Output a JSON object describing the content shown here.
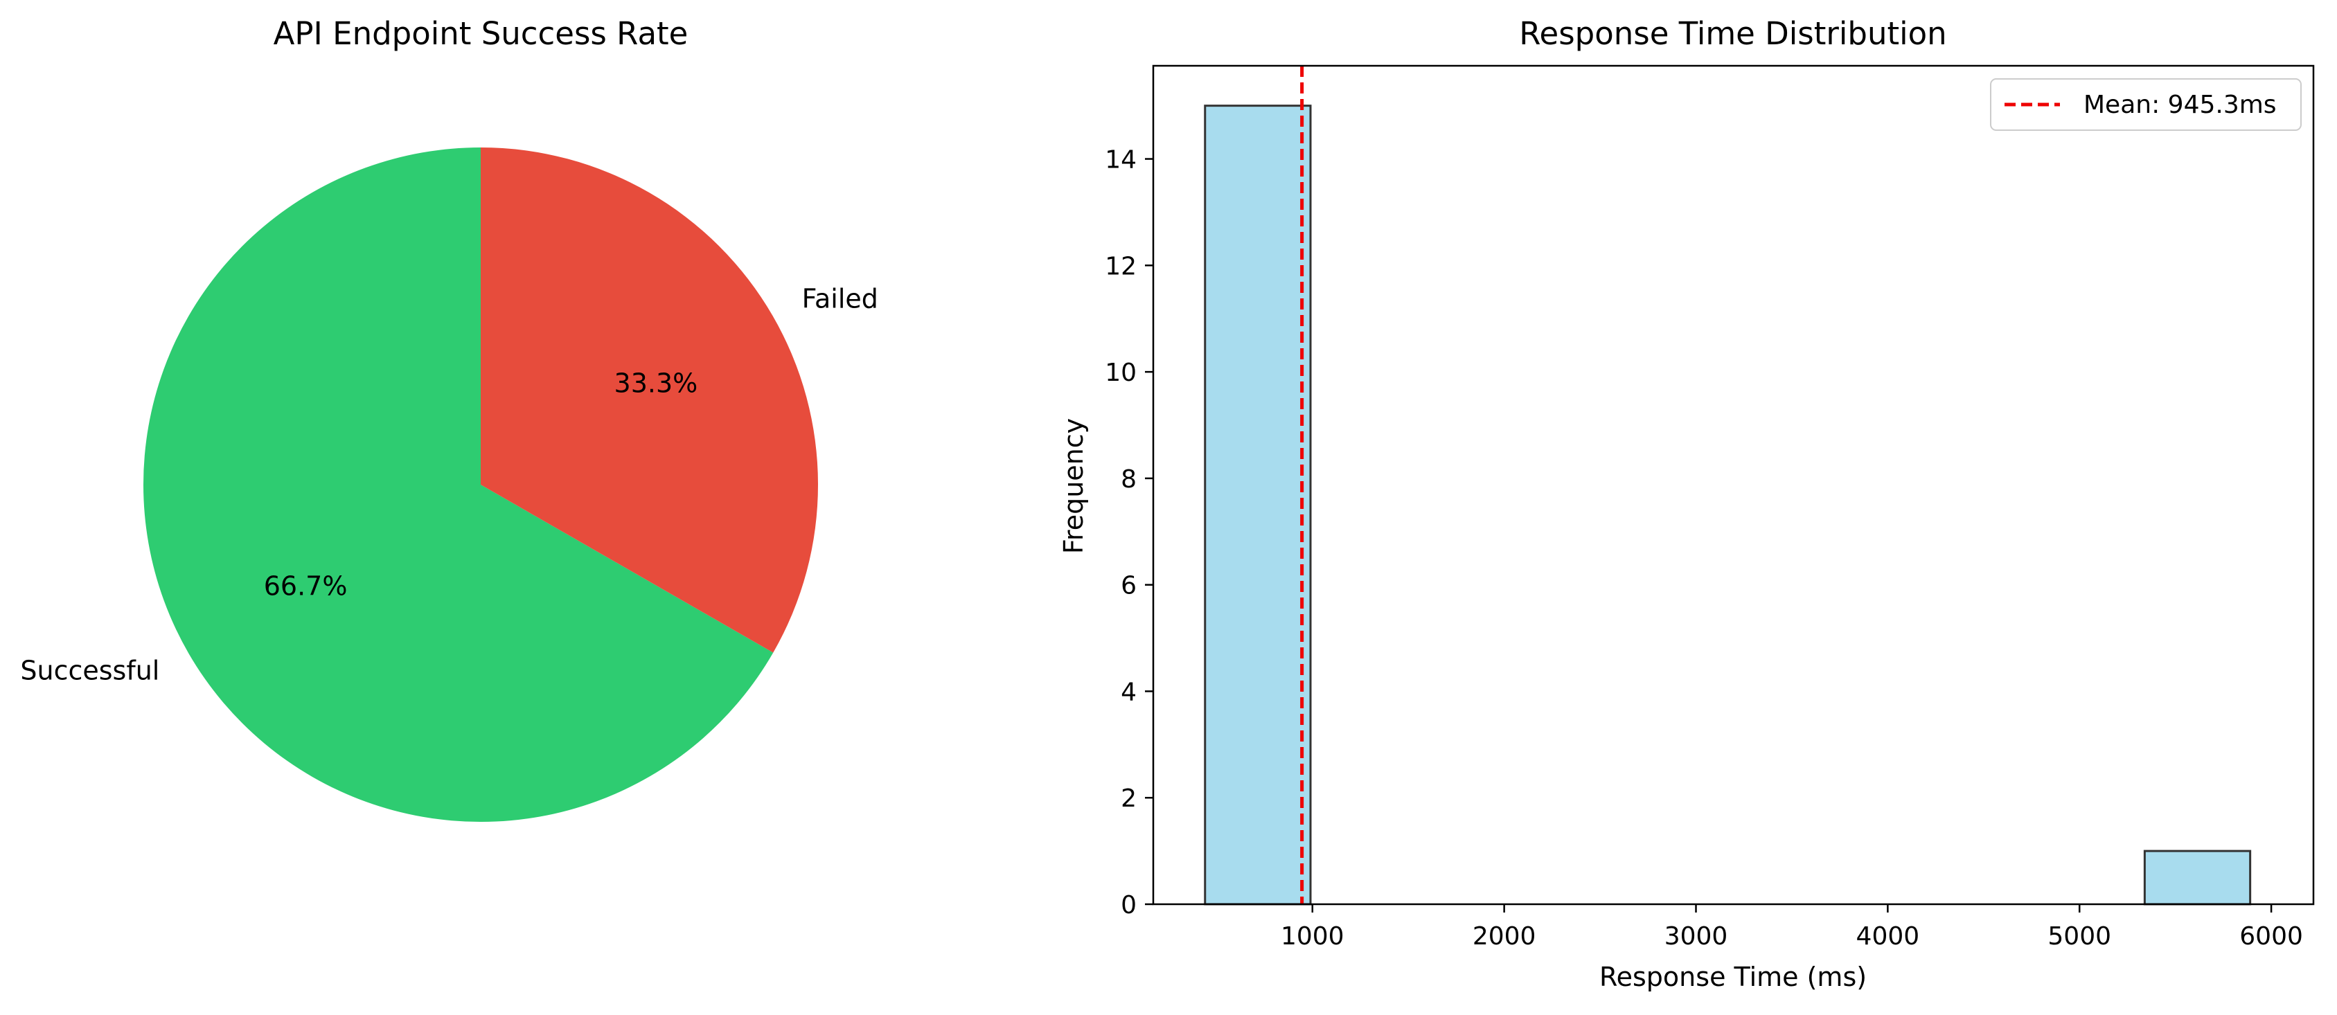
{
  "chart_data": [
    {
      "type": "pie",
      "title": "API Endpoint Success Rate",
      "slices": [
        {
          "label": "Successful",
          "value": 66.7,
          "pct_label": "66.7%",
          "color": "#2ecc71"
        },
        {
          "label": "Failed",
          "value": 33.3,
          "pct_label": "33.3%",
          "color": "#e74c3c"
        }
      ]
    },
    {
      "type": "bar",
      "subtype": "histogram",
      "title": "Response Time Distribution",
      "xlabel": "Response Time (ms)",
      "ylabel": "Frequency",
      "xlim": [
        170,
        6220
      ],
      "ylim": [
        0,
        15.75
      ],
      "xticks": [
        1000,
        2000,
        3000,
        4000,
        5000,
        6000
      ],
      "yticks": [
        0,
        2,
        4,
        6,
        8,
        10,
        12,
        14
      ],
      "bar_color": "#a8dcee",
      "bar_edge_color": "#333333",
      "bins": [
        {
          "x0": 440,
          "x1": 990,
          "count": 15
        },
        {
          "x0": 5340,
          "x1": 5890,
          "count": 1
        }
      ],
      "mean_line": {
        "value": 945.3,
        "color": "#ee0000"
      },
      "legend": {
        "position": "top-right",
        "entries": [
          {
            "label": "Mean: 945.3ms"
          }
        ]
      },
      "grid": false
    }
  ]
}
